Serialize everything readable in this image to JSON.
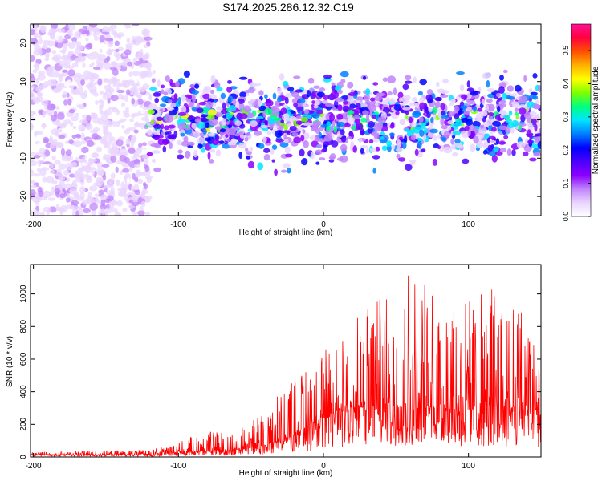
{
  "title": "S174.2025.286.12.32.C19",
  "chart_data": [
    {
      "type": "heatmap",
      "xlabel": "Height of straight line (km)",
      "ylabel": "Frequency (Hz)",
      "xlim": [
        -202,
        150
      ],
      "ylim": [
        -25,
        25
      ],
      "xticks": [
        -200,
        -100,
        0,
        100
      ],
      "yticks": [
        -20,
        -10,
        0,
        10,
        20
      ],
      "colorbar": {
        "label": "Normalized spectral amplitude",
        "range": [
          0,
          0.58
        ],
        "ticks": [
          "0.0",
          "0.1",
          "0.2",
          "0.3",
          "0.4",
          "0.5"
        ],
        "colors": [
          "#ffffff",
          "#e9d5ff",
          "#c084fc",
          "#8b00ff",
          "#4b00ff",
          "#0000ff",
          "#0080ff",
          "#00e5ff",
          "#00ff80",
          "#7fff00",
          "#ffff00",
          "#ffb000",
          "#ff5000",
          "#ff0040",
          "#ff1493"
        ]
      },
      "description_ranges": [
        {
          "x": [
            -202,
            -120
          ],
          "freq": [
            -25,
            25
          ],
          "amplitude": [
            0.02,
            0.08
          ]
        },
        {
          "x": [
            -120,
            150
          ],
          "freq": [
            -8,
            8
          ],
          "amplitude": [
            0.05,
            0.3
          ]
        }
      ]
    },
    {
      "type": "line",
      "xlabel": "Height of straight line (km)",
      "ylabel": "SNR (10 * v/v)",
      "xlim": [
        -202,
        150
      ],
      "ylim": [
        0,
        1180
      ],
      "xticks": [
        -200,
        -100,
        0,
        100
      ],
      "yticks": [
        0,
        200,
        400,
        600,
        800,
        1000
      ],
      "color": "#ff0000",
      "envelope": {
        "x": [
          -202,
          -150,
          -120,
          -100,
          -80,
          -60,
          -40,
          -20,
          0,
          20,
          40,
          60,
          80,
          100,
          120,
          150
        ],
        "base": [
          15,
          15,
          18,
          25,
          40,
          45,
          70,
          130,
          230,
          300,
          310,
          300,
          300,
          290,
          300,
          280
        ],
        "peak": [
          30,
          40,
          45,
          90,
          170,
          150,
          300,
          490,
          650,
          820,
          1060,
          1180,
          950,
          1000,
          1050,
          840
        ]
      }
    }
  ]
}
